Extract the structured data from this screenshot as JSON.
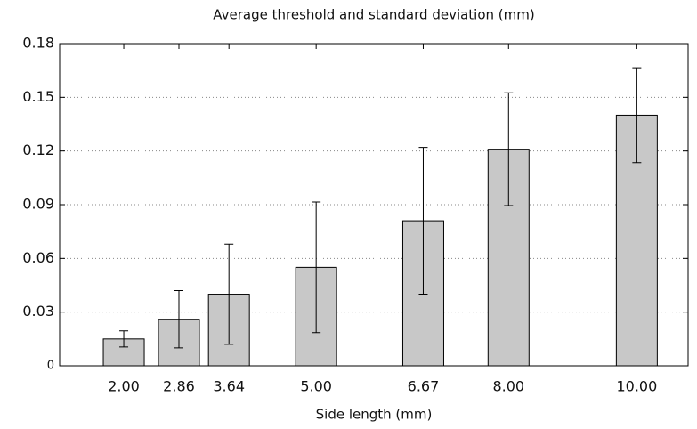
{
  "chart_data": {
    "type": "bar",
    "title": "Average threshold and standard deviation (mm)",
    "x_label": "Side length (mm)",
    "x": [
      2,
      2.86,
      3.64,
      5,
      6.67,
      8,
      10
    ],
    "values": [
      0.015,
      0.026,
      0.04,
      0.055,
      0.081,
      0.121,
      0.14
    ],
    "errors": [
      0.0045,
      0.016,
      0.028,
      0.0365,
      0.041,
      0.0315,
      0.0265
    ],
    "color": "#c8c8c8",
    "xlim": [
      1,
      10.8
    ],
    "xticks": [
      {
        "value": 2,
        "label": "2.00"
      },
      {
        "value": 2.86,
        "label": "2.86"
      },
      {
        "value": 3.64,
        "label": "3.64"
      },
      {
        "value": 5,
        "label": "5.00"
      },
      {
        "value": 6.67,
        "label": "6.67"
      },
      {
        "value": 8,
        "label": "8.00"
      },
      {
        "value": 10,
        "label": "10.00"
      }
    ],
    "ylim": [
      0,
      0.18
    ],
    "yticks": [
      0,
      0.03,
      0.06,
      0.09,
      0.12,
      0.15,
      0.18
    ],
    "grid": true
  }
}
